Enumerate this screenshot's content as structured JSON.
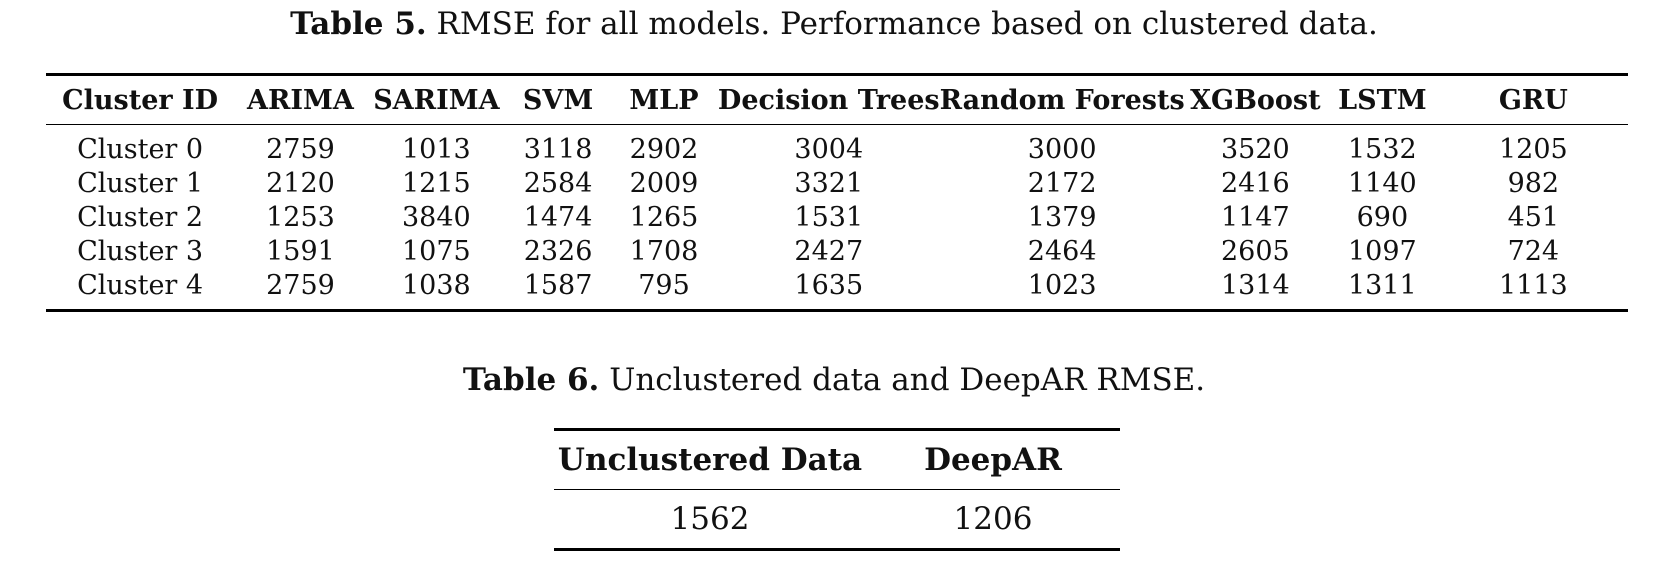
{
  "table5": {
    "caption_label": "Table 5.",
    "caption_text": " RMSE for all models. Performance based on clustered data.",
    "columns": [
      "Cluster ID",
      "ARIMA",
      "SARIMA",
      "SVM",
      "MLP",
      "Decision Trees",
      "Random Forests",
      "XGBoost",
      "LSTM",
      "GRU"
    ],
    "rows": [
      [
        "Cluster 0",
        "2759",
        "1013",
        "3118",
        "2902",
        "3004",
        "3000",
        "3520",
        "1532",
        "1205"
      ],
      [
        "Cluster 1",
        "2120",
        "1215",
        "2584",
        "2009",
        "3321",
        "2172",
        "2416",
        "1140",
        "982"
      ],
      [
        "Cluster 2",
        "1253",
        "3840",
        "1474",
        "1265",
        "1531",
        "1379",
        "1147",
        "690",
        "451"
      ],
      [
        "Cluster 3",
        "1591",
        "1075",
        "2326",
        "1708",
        "2427",
        "2464",
        "2605",
        "1097",
        "724"
      ],
      [
        "Cluster 4",
        "2759",
        "1038",
        "1587",
        "795",
        "1635",
        "1023",
        "1314",
        "1311",
        "1113"
      ]
    ]
  },
  "table6": {
    "caption_label": "Table 6.",
    "caption_text": " Unclustered data and DeepAR RMSE.",
    "columns": [
      "Unclustered Data",
      "DeepAR"
    ],
    "rows": [
      [
        "1562",
        "1206"
      ]
    ]
  }
}
